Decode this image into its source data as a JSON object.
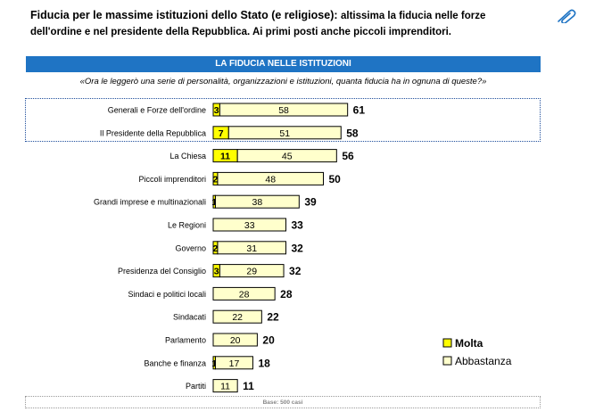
{
  "header": {
    "title_bold": "Fiducia per le massime istituzioni dello Stato (e religiose):",
    "title_rest": "altissima la fiducia nelle forze dell'ordine e nel presidente della Repubblica. Ai primi posti anche piccoli imprenditori.",
    "clip_icon": "paperclip-icon"
  },
  "banner": "LA FIDUCIA NELLE ISTITUZIONI",
  "question": "«Ora le leggerò una serie di personalità, organizzazioni e istituzioni, quanta fiducia ha in ognuna di queste?»",
  "base_note": "Base: 500 casi",
  "colors": {
    "molta": "#ffff00",
    "abbastanza": "#ffffcc",
    "banner": "#1f74c4",
    "border": "#000000"
  },
  "chart_data": {
    "type": "bar",
    "orientation": "horizontal",
    "stacked": true,
    "categories": [
      "Generali e Forze dell'ordine",
      "Il Presidente della Repubblica",
      "La Chiesa",
      "Piccoli imprenditori",
      "Grandi imprese e multinazionali",
      "Le Regioni",
      "Governo",
      "Presidenza del Consiglio",
      "Sindaci e politici locali",
      "Sindacati",
      "Parlamento",
      "Banche e finanza",
      "Partiti"
    ],
    "series": [
      {
        "name": "Molta",
        "values": [
          3,
          7,
          11,
          2,
          1,
          0,
          2,
          3,
          0,
          0,
          0,
          1,
          0
        ]
      },
      {
        "name": "Abbastanza",
        "values": [
          58,
          51,
          45,
          48,
          38,
          33,
          31,
          29,
          28,
          22,
          20,
          17,
          11
        ]
      }
    ],
    "totals": [
      61,
      58,
      56,
      50,
      39,
      33,
      32,
      32,
      28,
      22,
      20,
      18,
      11
    ],
    "legend": {
      "position": "right",
      "items": [
        "Molta",
        "Abbastanza"
      ]
    },
    "grid": false
  }
}
